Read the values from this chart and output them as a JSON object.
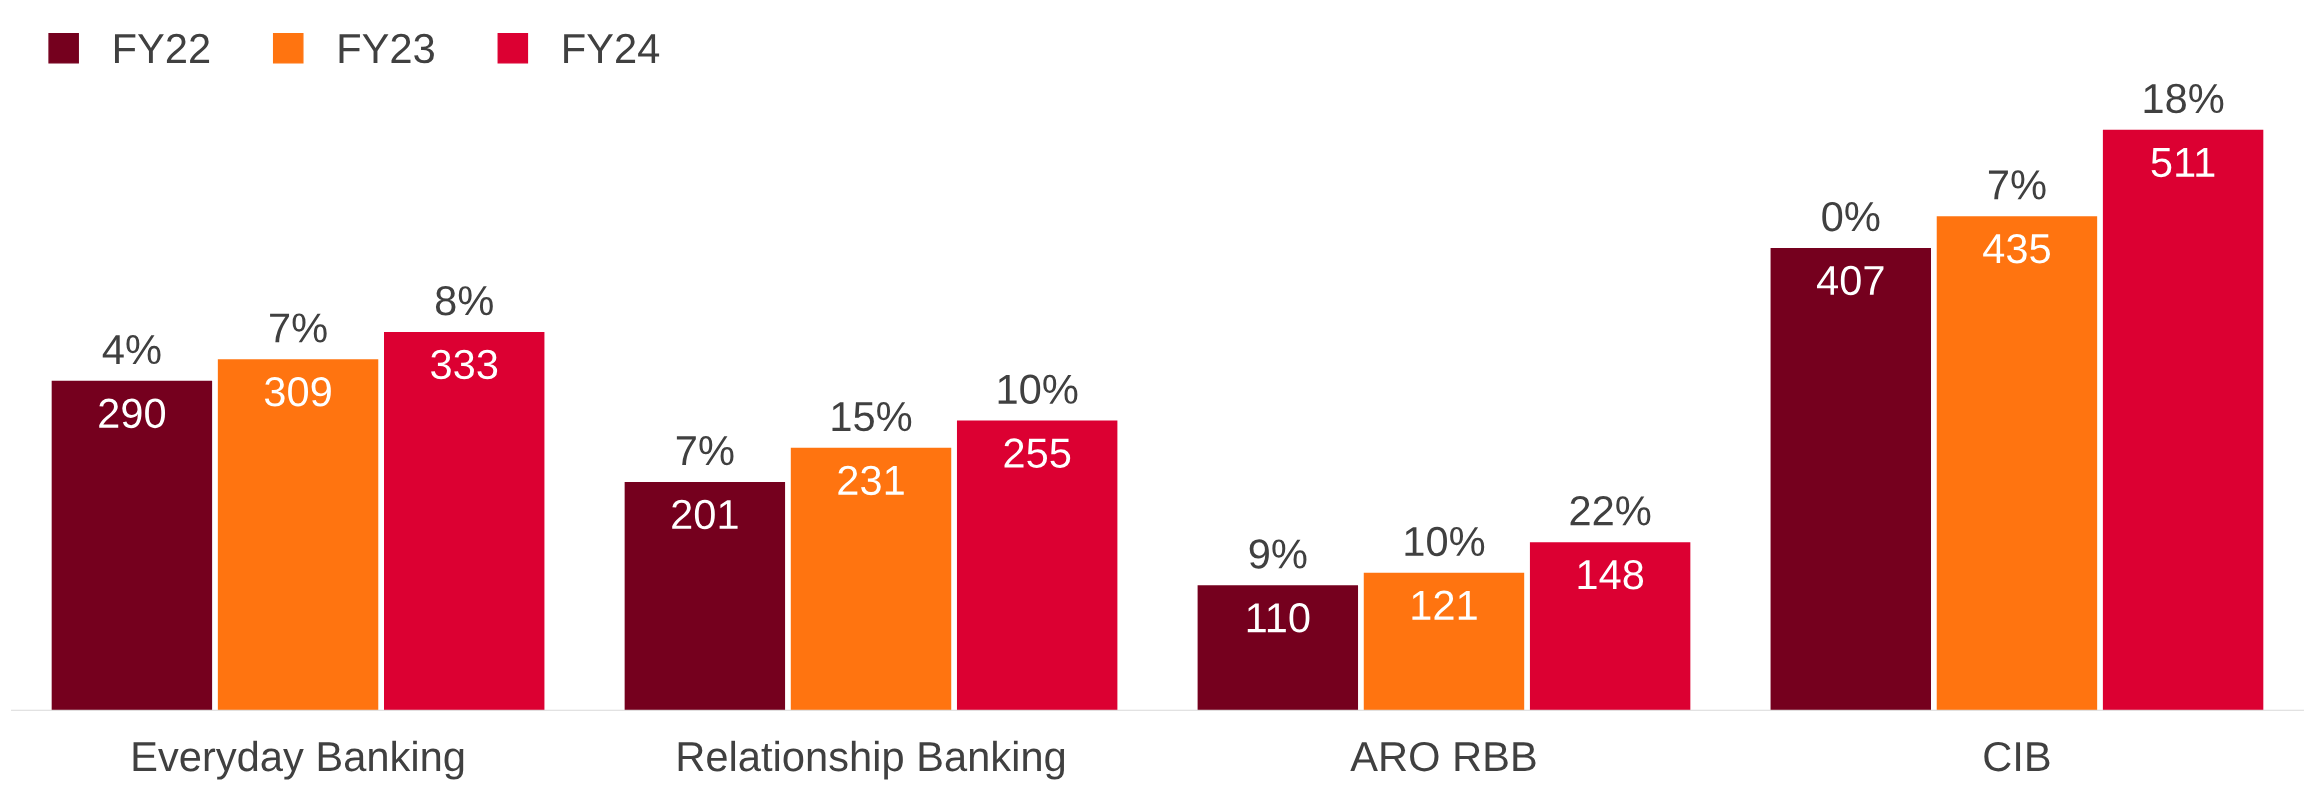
{
  "chart_data": {
    "type": "bar",
    "categories": [
      "Everyday Banking",
      "Relationship Banking",
      "ARO RBB",
      "CIB"
    ],
    "series": [
      {
        "name": "FY22",
        "color": "#75001e",
        "values": [
          290,
          201,
          110,
          407
        ],
        "value_labels": [
          "290",
          "201",
          "110",
          "407"
        ]
      },
      {
        "name": "FY23",
        "color": "#ff7410",
        "values": [
          309,
          231,
          121,
          435
        ],
        "value_labels": [
          "309",
          "231",
          "121",
          "435"
        ]
      },
      {
        "name": "FY24",
        "color": "#dc0032",
        "values": [
          333,
          255,
          148,
          511
        ],
        "value_labels": [
          "333",
          "255",
          "148",
          "511"
        ]
      }
    ],
    "annotations": [
      "4%",
      "7%",
      "8%",
      "7%",
      "15%",
      "10%",
      "9%",
      "10%",
      "22%",
      "0%",
      "7%",
      "18%"
    ],
    "legend": "top left",
    "tick_labels": "x"
  }
}
